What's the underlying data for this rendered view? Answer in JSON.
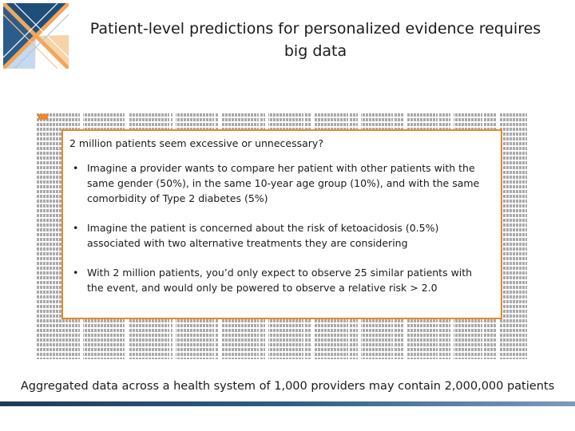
{
  "header": {
    "title": "Patient-level predictions for personalized evidence requires big data"
  },
  "logo": {
    "icon": "ohdsi-logo",
    "colors": [
      "#1f4e79",
      "#f2a65a",
      "#a7c7e7"
    ]
  },
  "callout": {
    "heading": "2 million patients seem excessive or unnecessary?",
    "bullets": [
      {
        "mark": "•",
        "text": "Imagine a provider wants to compare her patient with other patients with the same gender (50%), in the same 10-year age group (10%), and with the same comorbidity of Type 2 diabetes (5%)"
      },
      {
        "mark": "•",
        "text": "Imagine the patient is concerned about the risk of ketoacidosis (0.5%) associated with two alternative treatments they are considering"
      },
      {
        "mark": "•",
        "text": "With 2 million patients, you’d only expect to observe 25 similar patients with the event, and would only be powered to observe a relative risk > 2.0"
      }
    ]
  },
  "caption": "Aggregated data across a health system of 1,000 providers may contain 2,000,000 patients",
  "colors": {
    "accent": "#e8892a",
    "grid": "#a9a9a9",
    "footer": "#2f5d86"
  }
}
